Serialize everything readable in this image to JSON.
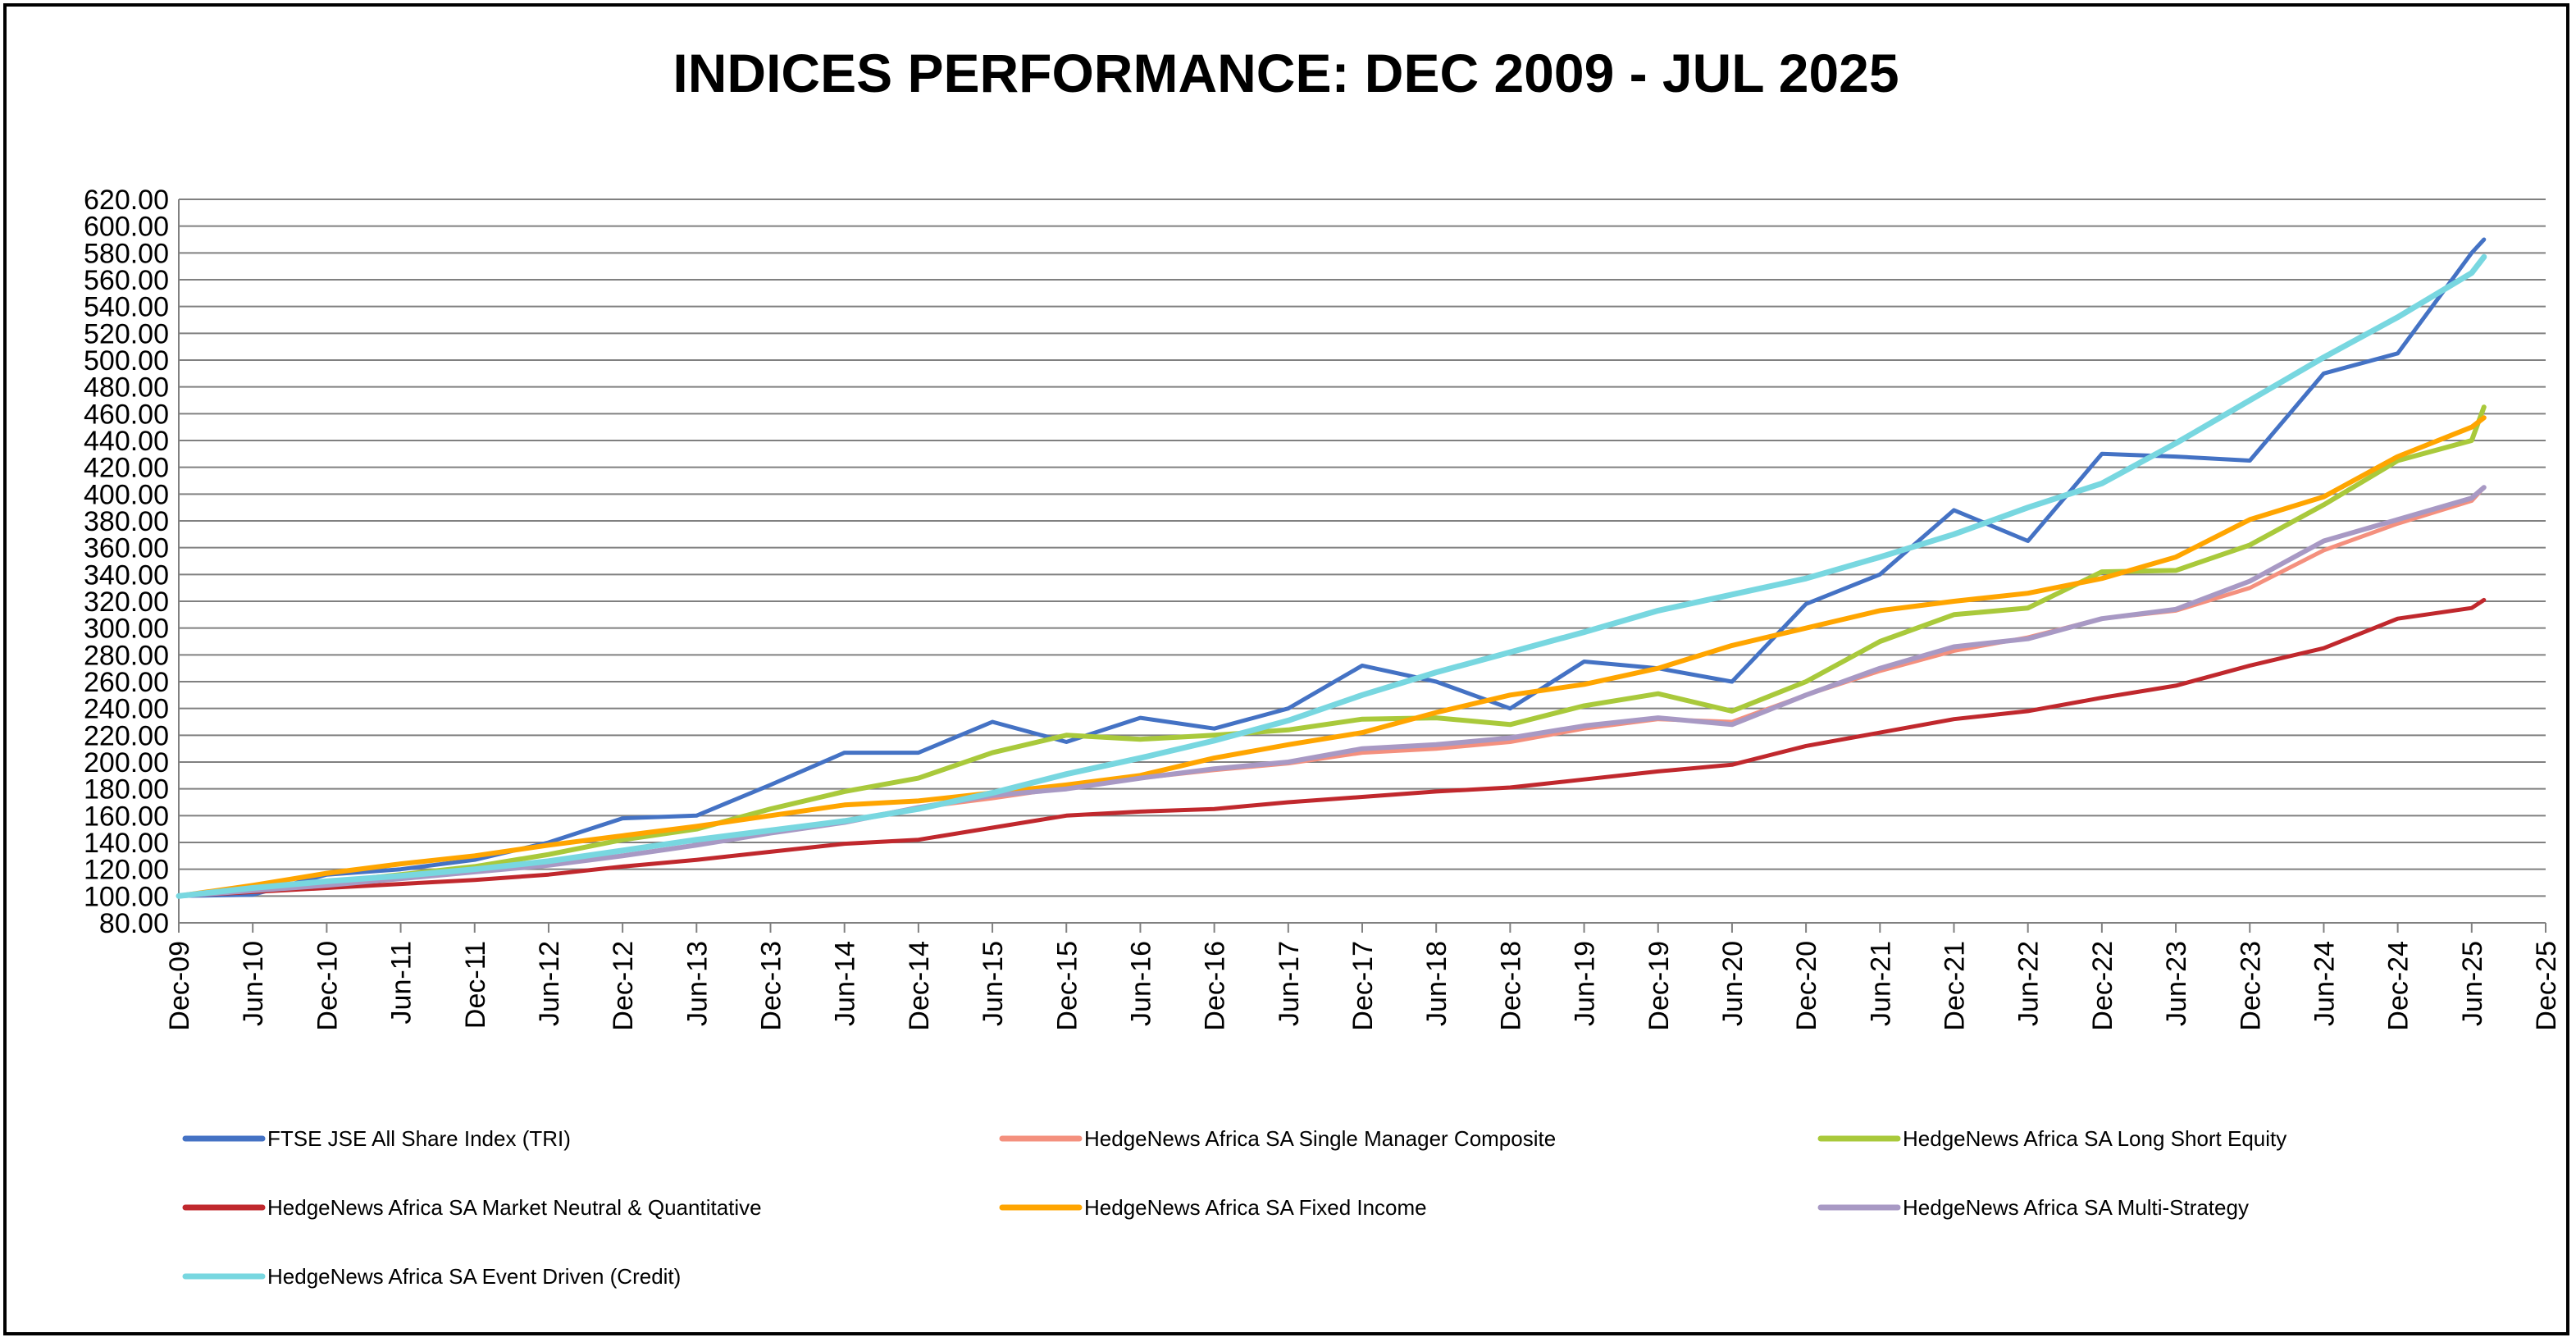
{
  "chart_data": {
    "type": "line",
    "title": "INDICES PERFORMANCE: DEC 2009 - JUL 2025",
    "xlabel": "",
    "ylabel": "",
    "ylim": [
      80,
      620
    ],
    "y_ticks": [
      "80.00",
      "100.00",
      "120.00",
      "140.00",
      "160.00",
      "180.00",
      "200.00",
      "220.00",
      "240.00",
      "260.00",
      "280.00",
      "300.00",
      "320.00",
      "340.00",
      "360.00",
      "380.00",
      "400.00",
      "420.00",
      "440.00",
      "460.00",
      "480.00",
      "500.00",
      "520.00",
      "540.00",
      "560.00",
      "580.00",
      "600.00",
      "620.00"
    ],
    "x_ticks": [
      "Dec-09",
      "Jun-10",
      "Dec-10",
      "Jun-11",
      "Dec-11",
      "Jun-12",
      "Dec-12",
      "Jun-13",
      "Dec-13",
      "Jun-14",
      "Dec-14",
      "Jun-15",
      "Dec-15",
      "Jun-16",
      "Dec-16",
      "Jun-17",
      "Dec-17",
      "Jun-18",
      "Dec-18",
      "Jun-19",
      "Dec-19",
      "Jun-20",
      "Dec-20",
      "Jun-21",
      "Dec-21",
      "Jun-22",
      "Dec-22",
      "Jun-23",
      "Dec-23",
      "Jun-24",
      "Dec-24",
      "Jun-25",
      "Dec-25"
    ],
    "grid": true,
    "legend_position": "bottom",
    "x": [
      "Dec-09",
      "Jun-10",
      "Dec-10",
      "Jun-11",
      "Dec-11",
      "Jun-12",
      "Dec-12",
      "Jun-13",
      "Dec-13",
      "Jun-14",
      "Dec-14",
      "Jun-15",
      "Dec-15",
      "Jun-16",
      "Dec-16",
      "Jun-17",
      "Dec-17",
      "Jun-18",
      "Dec-18",
      "Jun-19",
      "Dec-19",
      "Jun-20",
      "Dec-20",
      "Jun-21",
      "Dec-21",
      "Jun-22",
      "Dec-22",
      "Jun-23",
      "Dec-23",
      "Jun-24",
      "Dec-24",
      "Jun-25",
      "Jul-25"
    ],
    "series": [
      {
        "name": "FTSE JSE All Share Index (TRI)",
        "color": "#4472C4",
        "width": 5,
        "values": [
          100,
          101,
          116,
          120,
          127,
          140,
          158,
          160,
          183,
          207,
          207,
          230,
          215,
          233,
          225,
          240,
          272,
          260,
          240,
          275,
          270,
          260,
          318,
          340,
          388,
          365,
          430,
          428,
          425,
          490,
          505,
          580,
          590
        ]
      },
      {
        "name": "HedgeNews Africa SA Single Manager Composite",
        "color": "#F4907E",
        "width": 5,
        "values": [
          100,
          104,
          108,
          113,
          118,
          123,
          130,
          138,
          148,
          156,
          166,
          173,
          181,
          188,
          194,
          199,
          207,
          210,
          215,
          225,
          232,
          230,
          250,
          268,
          283,
          293,
          307,
          313,
          330,
          358,
          378,
          395,
          405
        ]
      },
      {
        "name": "HedgeNews Africa SA Long Short Equity",
        "color": "#A9C93B",
        "width": 6,
        "values": [
          100,
          106,
          110,
          116,
          122,
          131,
          142,
          150,
          165,
          178,
          188,
          207,
          220,
          217,
          220,
          224,
          232,
          233,
          228,
          242,
          251,
          238,
          260,
          290,
          310,
          315,
          342,
          343,
          362,
          392,
          425,
          440,
          465
        ]
      },
      {
        "name": "HedgeNews Africa SA Market Neutral & Quantitative",
        "color": "#C0282D",
        "width": 5,
        "values": [
          100,
          103,
          106,
          109,
          112,
          116,
          122,
          127,
          133,
          139,
          142,
          151,
          160,
          163,
          165,
          170,
          174,
          178,
          181,
          187,
          193,
          198,
          212,
          222,
          232,
          238,
          248,
          257,
          272,
          285,
          307,
          315,
          321
        ]
      },
      {
        "name": "HedgeNews Africa SA Fixed Income",
        "color": "#FFA500",
        "width": 6,
        "values": [
          100,
          108,
          117,
          124,
          130,
          138,
          145,
          152,
          160,
          168,
          171,
          177,
          183,
          190,
          203,
          213,
          222,
          237,
          250,
          258,
          270,
          287,
          300,
          313,
          320,
          326,
          337,
          353,
          381,
          398,
          428,
          450,
          457
        ]
      },
      {
        "name": "HedgeNews Africa SA Multi-Strategy",
        "color": "#A899C4",
        "width": 6,
        "values": [
          100,
          104,
          108,
          113,
          118,
          123,
          130,
          138,
          147,
          155,
          166,
          175,
          180,
          188,
          195,
          200,
          210,
          213,
          218,
          227,
          233,
          228,
          250,
          270,
          286,
          292,
          307,
          314,
          335,
          365,
          381,
          397,
          405
        ]
      },
      {
        "name": "HedgeNews Africa SA Event Driven (Credit)",
        "color": "#78D7E0",
        "width": 7,
        "values": [
          100,
          106,
          111,
          115,
          120,
          126,
          134,
          142,
          149,
          156,
          165,
          177,
          191,
          203,
          216,
          231,
          250,
          267,
          282,
          297,
          313,
          325,
          337,
          353,
          370,
          390,
          408,
          438,
          470,
          502,
          532,
          565,
          577
        ]
      }
    ]
  }
}
